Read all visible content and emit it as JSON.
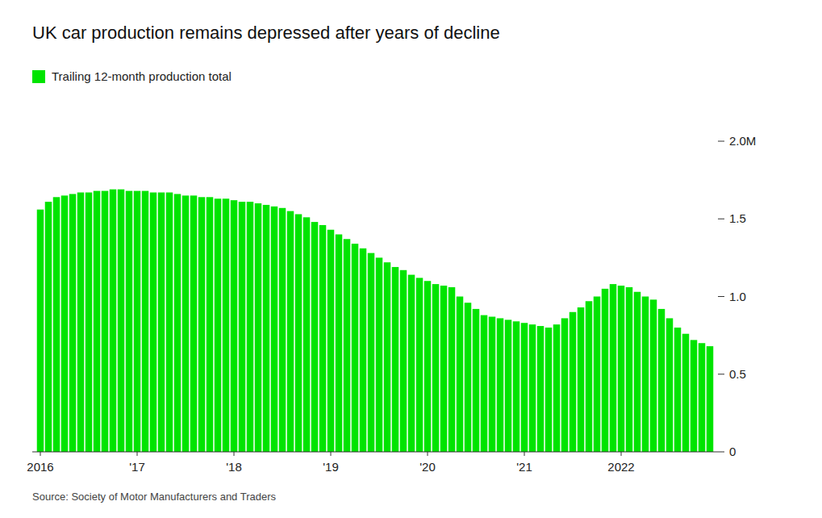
{
  "chart_data": {
    "type": "bar",
    "title": "UK car production remains depressed after years of decline",
    "source": "Source: Society of Motor Manufacturers and Traders",
    "categories": [
      "2016",
      null,
      null,
      null,
      null,
      null,
      null,
      null,
      null,
      null,
      null,
      null,
      "'17",
      null,
      null,
      null,
      null,
      null,
      null,
      null,
      null,
      null,
      null,
      null,
      "'18",
      null,
      null,
      null,
      null,
      null,
      null,
      null,
      null,
      null,
      null,
      null,
      "'19",
      null,
      null,
      null,
      null,
      null,
      null,
      null,
      null,
      null,
      null,
      null,
      "'20",
      null,
      null,
      null,
      null,
      null,
      null,
      null,
      null,
      null,
      null,
      null,
      "'21",
      null,
      null,
      null,
      null,
      null,
      null,
      null,
      null,
      null,
      null,
      null,
      "2022",
      null,
      null,
      null,
      null,
      null,
      null,
      null,
      null,
      null,
      null,
      null
    ],
    "series": [
      {
        "name": "Trailing 12-month production total",
        "color": "#00e400",
        "values": [
          1.56,
          1.61,
          1.64,
          1.65,
          1.66,
          1.67,
          1.67,
          1.68,
          1.68,
          1.69,
          1.69,
          1.68,
          1.68,
          1.68,
          1.67,
          1.67,
          1.67,
          1.66,
          1.65,
          1.65,
          1.64,
          1.64,
          1.63,
          1.63,
          1.62,
          1.61,
          1.61,
          1.6,
          1.59,
          1.58,
          1.57,
          1.55,
          1.53,
          1.51,
          1.48,
          1.46,
          1.43,
          1.4,
          1.37,
          1.34,
          1.31,
          1.28,
          1.25,
          1.22,
          1.19,
          1.17,
          1.14,
          1.12,
          1.1,
          1.08,
          1.07,
          1.06,
          1.0,
          0.96,
          0.92,
          0.88,
          0.87,
          0.86,
          0.85,
          0.84,
          0.83,
          0.82,
          0.81,
          0.8,
          0.82,
          0.86,
          0.9,
          0.93,
          0.97,
          1.0,
          1.05,
          1.08,
          1.07,
          1.06,
          1.03,
          1.0,
          0.98,
          0.92,
          0.86,
          0.8,
          0.76,
          0.72,
          0.7,
          0.68
        ]
      }
    ],
    "ylim": [
      0,
      2.0
    ],
    "yticks": [
      0,
      0.5,
      {
        "value": 1.0,
        "label": "1.0"
      },
      1.5,
      {
        "value": 2.0,
        "label": "2.0M"
      }
    ],
    "grid": false,
    "legend": "upper left"
  }
}
